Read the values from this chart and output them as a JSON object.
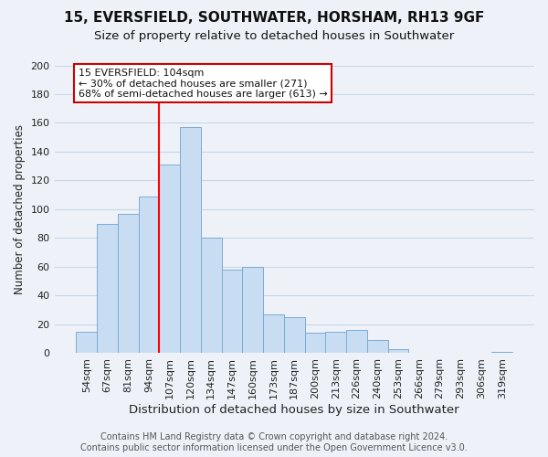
{
  "title": "15, EVERSFIELD, SOUTHWATER, HORSHAM, RH13 9GF",
  "subtitle": "Size of property relative to detached houses in Southwater",
  "xlabel": "Distribution of detached houses by size in Southwater",
  "ylabel": "Number of detached properties",
  "bar_labels": [
    "54sqm",
    "67sqm",
    "81sqm",
    "94sqm",
    "107sqm",
    "120sqm",
    "134sqm",
    "147sqm",
    "160sqm",
    "173sqm",
    "187sqm",
    "200sqm",
    "213sqm",
    "226sqm",
    "240sqm",
    "253sqm",
    "266sqm",
    "279sqm",
    "293sqm",
    "306sqm",
    "319sqm"
  ],
  "bar_heights": [
    15,
    90,
    97,
    109,
    131,
    157,
    80,
    58,
    60,
    27,
    25,
    14,
    15,
    16,
    9,
    3,
    0,
    0,
    0,
    0,
    1
  ],
  "bar_color": "#c9ddf2",
  "bar_edge_color": "#7aacd6",
  "vline_x_index": 4,
  "vline_color": "red",
  "annotation_text_line1": "15 EVERSFIELD: 104sqm",
  "annotation_text_line2": "← 30% of detached houses are smaller (271)",
  "annotation_text_line3": "68% of semi-detached houses are larger (613) →",
  "annotation_box_color": "#ffffff",
  "annotation_border_color": "#cc0000",
  "ylim": [
    0,
    200
  ],
  "yticks": [
    0,
    20,
    40,
    60,
    80,
    100,
    120,
    140,
    160,
    180,
    200
  ],
  "grid_color": "#c8d6e8",
  "footer_line1": "Contains HM Land Registry data © Crown copyright and database right 2024.",
  "footer_line2": "Contains public sector information licensed under the Open Government Licence v3.0.",
  "title_fontsize": 11,
  "subtitle_fontsize": 9.5,
  "xlabel_fontsize": 9.5,
  "ylabel_fontsize": 8.5,
  "tick_fontsize": 8,
  "annotation_fontsize": 8,
  "footer_fontsize": 7,
  "background_color": "#eef2f8"
}
